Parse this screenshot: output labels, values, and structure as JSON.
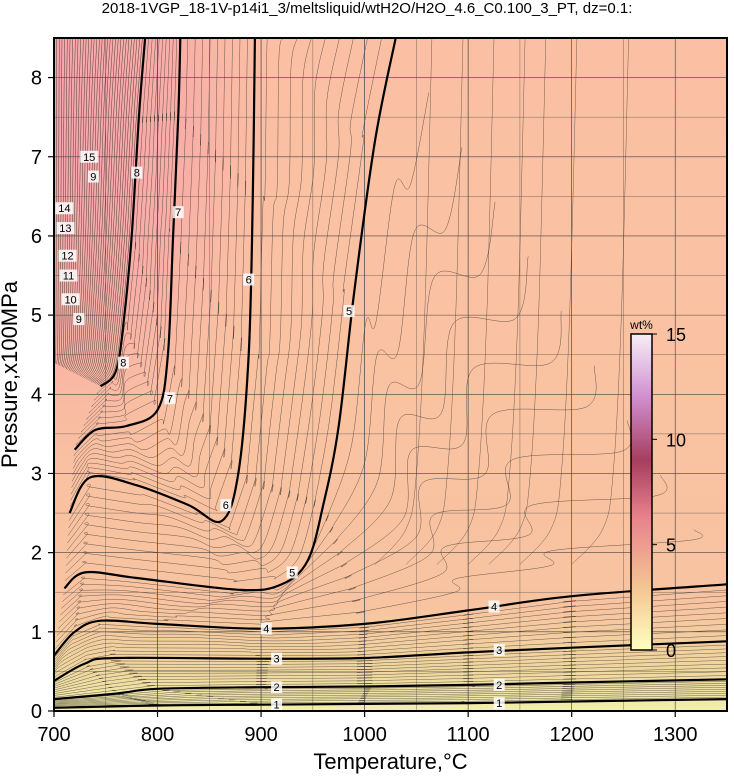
{
  "title": "2018-1VGP_18-1V-p14i1_3/meltsliquid/wtH2O/H2O_4.6_C0.100_3_PT, dz=0.1:",
  "chart_data": {
    "type": "heatmap",
    "title": "2018-1VGP_18-1V-p14i1_3/meltsliquid/wtH2O/H2O_4.6_C0.100_3_PT, dz=0.1:",
    "xlabel": "Temperature,°C",
    "ylabel": "Pressure,x100MPa",
    "xlim": [
      700,
      1350
    ],
    "ylim": [
      0,
      8.5
    ],
    "x_ticks": [
      700,
      800,
      900,
      1000,
      1100,
      1200,
      1300
    ],
    "y_ticks": [
      0,
      1,
      2,
      3,
      4,
      5,
      6,
      7,
      8
    ],
    "grid": true,
    "colorbar": {
      "label": "wt%",
      "ticks": [
        0,
        5,
        10,
        15
      ],
      "range": [
        0,
        15
      ],
      "placement": "right-inside"
    },
    "contour_interval": 0.1,
    "labeled_contours": [
      {
        "level": 1,
        "points": [
          [
            700,
            0.04
          ],
          [
            800,
            0.07
          ],
          [
            900,
            0.08
          ],
          [
            1000,
            0.09
          ],
          [
            1100,
            0.1
          ],
          [
            1200,
            0.12
          ],
          [
            1350,
            0.15
          ]
        ]
      },
      {
        "level": 2,
        "points": [
          [
            700,
            0.15
          ],
          [
            760,
            0.22
          ],
          [
            800,
            0.28
          ],
          [
            900,
            0.3
          ],
          [
            1000,
            0.31
          ],
          [
            1100,
            0.33
          ],
          [
            1200,
            0.36
          ],
          [
            1350,
            0.4
          ]
        ]
      },
      {
        "level": 3,
        "points": [
          [
            700,
            0.38
          ],
          [
            730,
            0.6
          ],
          [
            760,
            0.67
          ],
          [
            900,
            0.66
          ],
          [
            1000,
            0.67
          ],
          [
            1100,
            0.74
          ],
          [
            1200,
            0.8
          ],
          [
            1350,
            0.88
          ]
        ]
      },
      {
        "level": 4,
        "points": [
          [
            700,
            0.7
          ],
          [
            720,
            1.0
          ],
          [
            745,
            1.14
          ],
          [
            800,
            1.1
          ],
          [
            900,
            1.04
          ],
          [
            1000,
            1.1
          ],
          [
            1100,
            1.27
          ],
          [
            1200,
            1.45
          ],
          [
            1350,
            1.6
          ]
        ]
      },
      {
        "level": 5,
        "points": [
          [
            710,
            1.55
          ],
          [
            730,
            1.75
          ],
          [
            780,
            1.68
          ],
          [
            880,
            1.53
          ],
          [
            920,
            1.6
          ],
          [
            945,
            1.9
          ],
          [
            960,
            2.6
          ],
          [
            975,
            3.6
          ],
          [
            990,
            5.3
          ],
          [
            1010,
            7.2
          ],
          [
            1030,
            8.5
          ]
        ]
      },
      {
        "level": 6,
        "points": [
          [
            715,
            2.5
          ],
          [
            735,
            2.95
          ],
          [
            780,
            2.85
          ],
          [
            830,
            2.6
          ],
          [
            862,
            2.4
          ],
          [
            878,
            3.0
          ],
          [
            888,
            4.5
          ],
          [
            892,
            6.5
          ],
          [
            894,
            8.5
          ]
        ]
      },
      {
        "level": 7,
        "points": [
          [
            720,
            3.3
          ],
          [
            740,
            3.55
          ],
          [
            770,
            3.6
          ],
          [
            800,
            3.8
          ],
          [
            810,
            4.5
          ],
          [
            815,
            6.0
          ],
          [
            820,
            7.5
          ],
          [
            822,
            8.5
          ]
        ]
      },
      {
        "level": 8,
        "points": [
          [
            745,
            4.1
          ],
          [
            760,
            4.3
          ],
          [
            768,
            5.0
          ],
          [
            775,
            6.0
          ],
          [
            782,
            7.5
          ],
          [
            788,
            8.5
          ]
        ]
      }
    ],
    "contour_labels": [
      {
        "text": "1",
        "x": 915,
        "y": 0.08
      },
      {
        "text": "1",
        "x": 1130,
        "y": 0.1
      },
      {
        "text": "2",
        "x": 915,
        "y": 0.3
      },
      {
        "text": "2",
        "x": 1130,
        "y": 0.33
      },
      {
        "text": "3",
        "x": 915,
        "y": 0.66
      },
      {
        "text": "3",
        "x": 1130,
        "y": 0.77
      },
      {
        "text": "4",
        "x": 905,
        "y": 1.04
      },
      {
        "text": "4",
        "x": 1125,
        "y": 1.32
      },
      {
        "text": "5",
        "x": 930,
        "y": 1.75
      },
      {
        "text": "5",
        "x": 985,
        "y": 5.05
      },
      {
        "text": "6",
        "x": 866,
        "y": 2.6
      },
      {
        "text": "6",
        "x": 888,
        "y": 5.45
      },
      {
        "text": "7",
        "x": 812,
        "y": 3.95
      },
      {
        "text": "7",
        "x": 820,
        "y": 6.3
      },
      {
        "text": "8",
        "x": 767,
        "y": 4.4
      },
      {
        "text": "8",
        "x": 780,
        "y": 6.8
      },
      {
        "text": "9",
        "x": 724,
        "y": 4.95
      },
      {
        "text": "9",
        "x": 738,
        "y": 6.75
      },
      {
        "text": "10",
        "x": 716,
        "y": 5.2
      },
      {
        "text": "11",
        "x": 714,
        "y": 5.5
      },
      {
        "text": "12",
        "x": 713,
        "y": 5.75
      },
      {
        "text": "13",
        "x": 711,
        "y": 6.1
      },
      {
        "text": "14",
        "x": 710,
        "y": 6.35
      },
      {
        "text": "15",
        "x": 734,
        "y": 7.0
      }
    ]
  }
}
